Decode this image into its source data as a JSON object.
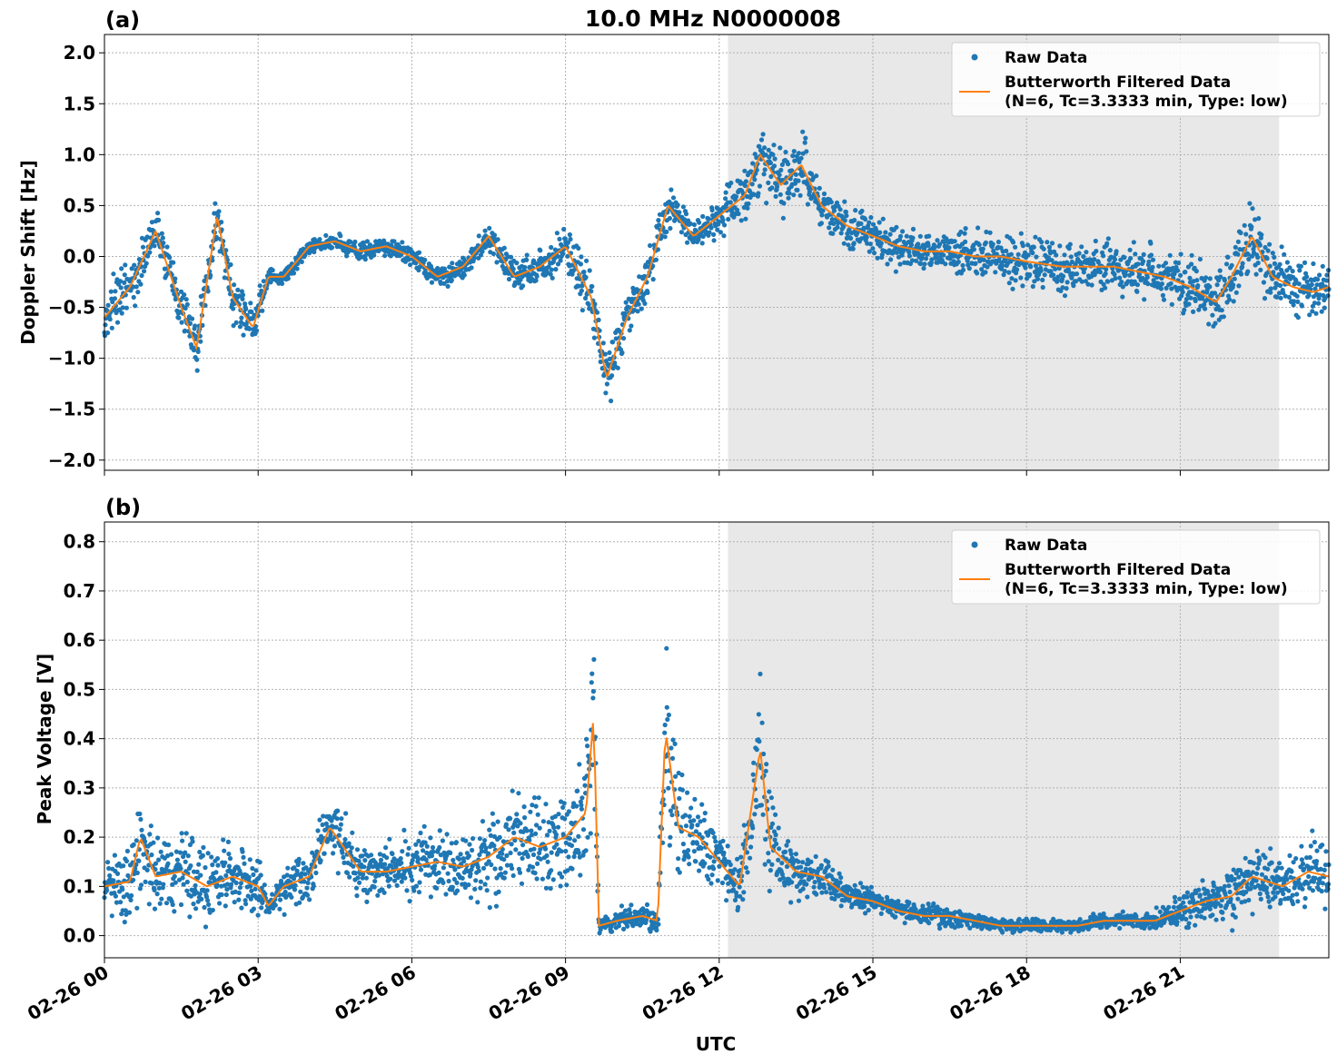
{
  "title": "10.0 MHz N0000008",
  "xlabel": "UTC",
  "colors": {
    "raw": "#1f77b4",
    "filtered": "#ff7f0e",
    "shade": "#e8e8e8"
  },
  "x_tick_labels": [
    "02-26 00",
    "02-26 03",
    "02-26 06",
    "02-26 09",
    "02-26 12",
    "02-26 15",
    "02-26 18",
    "02-26 21"
  ],
  "legend": {
    "raw_label": "Raw Data",
    "filtered_label_line1": "Butterworth Filtered Data",
    "filtered_label_line2": "(N=6, Tc=3.3333 min, Type: low)"
  },
  "chart_data": [
    {
      "panel": "(a)",
      "type": "scatter",
      "ylabel": "Doppler Shift [Hz]",
      "xlim_hours": [
        0,
        23.9
      ],
      "ylim": [
        -2.1,
        2.18
      ],
      "yticks": [
        2.0,
        1.5,
        1.0,
        0.5,
        0.0,
        -0.5,
        -1.0,
        -1.5,
        -2.0
      ],
      "ytick_labels": [
        "2.0",
        "1.5",
        "1.0",
        "0.5",
        "0.0",
        "−0.5",
        "−1.0",
        "−1.5",
        "−2.0"
      ],
      "shaded_span_hours": [
        12.17,
        22.93
      ],
      "grid": true,
      "legend_position": "top-right",
      "x": [
        0,
        0.5,
        1.0,
        1.5,
        1.8,
        2.2,
        2.5,
        2.9,
        3.2,
        3.5,
        4.0,
        4.5,
        5.0,
        5.5,
        6.0,
        6.5,
        7.0,
        7.5,
        8.0,
        8.5,
        9.0,
        9.5,
        9.8,
        10.2,
        10.6,
        11.0,
        11.5,
        12.0,
        12.5,
        12.8,
        13.2,
        13.6,
        14.0,
        14.5,
        15.0,
        15.5,
        16.0,
        16.5,
        17.0,
        17.5,
        18.0,
        18.7,
        19.2,
        19.7,
        20.2,
        20.7,
        21.2,
        21.7,
        22.0,
        22.4,
        22.8,
        23.2,
        23.6,
        23.9
      ],
      "series": [
        {
          "name": "Butterworth Filtered Data",
          "values": [
            -0.6,
            -0.3,
            0.25,
            -0.5,
            -0.9,
            0.4,
            -0.4,
            -0.7,
            -0.2,
            -0.2,
            0.1,
            0.15,
            0.05,
            0.1,
            0.0,
            -0.2,
            -0.1,
            0.2,
            -0.2,
            -0.1,
            0.1,
            -0.4,
            -1.2,
            -0.6,
            -0.2,
            0.5,
            0.2,
            0.4,
            0.6,
            1.0,
            0.7,
            0.9,
            0.5,
            0.3,
            0.2,
            0.1,
            0.05,
            0.05,
            0.0,
            0.0,
            -0.05,
            -0.1,
            -0.1,
            -0.1,
            -0.15,
            -0.2,
            -0.3,
            -0.45,
            -0.2,
            0.2,
            -0.2,
            -0.3,
            -0.35,
            -0.3
          ],
          "spread": [
            0.35,
            0.35,
            0.3,
            0.3,
            0.3,
            0.4,
            0.3,
            0.3,
            0.15,
            0.12,
            0.1,
            0.1,
            0.12,
            0.12,
            0.12,
            0.15,
            0.15,
            0.2,
            0.2,
            0.25,
            0.3,
            0.4,
            0.45,
            0.35,
            0.3,
            0.3,
            0.2,
            0.25,
            0.4,
            0.5,
            0.5,
            0.45,
            0.35,
            0.3,
            0.3,
            0.3,
            0.3,
            0.3,
            0.3,
            0.3,
            0.35,
            0.35,
            0.35,
            0.35,
            0.35,
            0.35,
            0.4,
            0.4,
            0.4,
            0.5,
            0.4,
            0.35,
            0.35,
            0.3
          ]
        }
      ]
    },
    {
      "panel": "(b)",
      "type": "scatter",
      "ylabel": "Peak Voltage [V]",
      "xlim_hours": [
        0,
        23.9
      ],
      "ylim": [
        -0.045,
        0.84
      ],
      "yticks": [
        0.8,
        0.7,
        0.6,
        0.5,
        0.4,
        0.3,
        0.2,
        0.1,
        0.0
      ],
      "ytick_labels": [
        "0.8",
        "0.7",
        "0.6",
        "0.5",
        "0.4",
        "0.3",
        "0.2",
        "0.1",
        "0.0"
      ],
      "shaded_span_hours": [
        12.17,
        22.93
      ],
      "grid": true,
      "legend_position": "top-right",
      "x": [
        0,
        0.5,
        0.7,
        1.0,
        1.5,
        2.0,
        2.5,
        3.0,
        3.2,
        3.5,
        4.0,
        4.4,
        5.0,
        5.5,
        6.0,
        6.5,
        7.0,
        7.5,
        8.0,
        8.5,
        9.0,
        9.4,
        9.55,
        9.65,
        10.0,
        10.5,
        10.8,
        10.95,
        11.2,
        11.6,
        12.0,
        12.4,
        12.8,
        13.0,
        13.5,
        14.0,
        14.5,
        15.0,
        15.5,
        16.0,
        16.5,
        17.0,
        17.5,
        18.0,
        18.5,
        19.0,
        19.5,
        20.0,
        20.5,
        21.0,
        21.5,
        22.0,
        22.4,
        23.0,
        23.5,
        23.9
      ],
      "series": [
        {
          "name": "Butterworth Filtered Data",
          "values": [
            0.1,
            0.11,
            0.2,
            0.12,
            0.13,
            0.1,
            0.12,
            0.1,
            0.06,
            0.1,
            0.12,
            0.22,
            0.13,
            0.13,
            0.14,
            0.15,
            0.14,
            0.16,
            0.2,
            0.18,
            0.2,
            0.25,
            0.45,
            0.02,
            0.03,
            0.04,
            0.03,
            0.42,
            0.22,
            0.2,
            0.15,
            0.1,
            0.38,
            0.18,
            0.13,
            0.12,
            0.08,
            0.07,
            0.05,
            0.04,
            0.04,
            0.03,
            0.02,
            0.02,
            0.02,
            0.02,
            0.03,
            0.03,
            0.03,
            0.05,
            0.07,
            0.08,
            0.12,
            0.1,
            0.13,
            0.12
          ],
          "spread": [
            0.1,
            0.12,
            0.15,
            0.1,
            0.12,
            0.1,
            0.1,
            0.08,
            0.05,
            0.08,
            0.08,
            0.1,
            0.08,
            0.08,
            0.09,
            0.1,
            0.1,
            0.12,
            0.14,
            0.14,
            0.15,
            0.2,
            0.25,
            0.03,
            0.03,
            0.04,
            0.04,
            0.3,
            0.15,
            0.12,
            0.1,
            0.08,
            0.22,
            0.15,
            0.08,
            0.06,
            0.04,
            0.04,
            0.03,
            0.03,
            0.03,
            0.02,
            0.02,
            0.02,
            0.02,
            0.02,
            0.02,
            0.02,
            0.03,
            0.05,
            0.06,
            0.08,
            0.1,
            0.08,
            0.1,
            0.09
          ]
        }
      ]
    }
  ]
}
